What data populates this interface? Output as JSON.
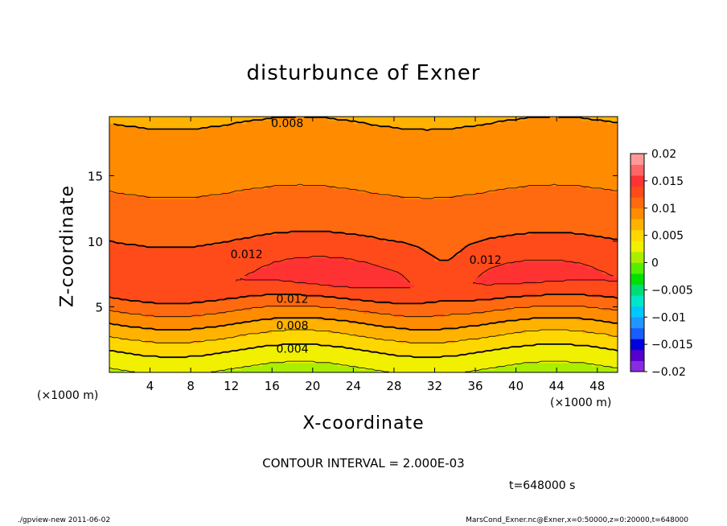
{
  "chart_data": {
    "type": "heatmap",
    "title": "disturbunce of Exner",
    "xlabel": "X-coordinate",
    "ylabel": "Z-coordinate",
    "x_unit_label": "(×1000 m)",
    "xlim": [
      0,
      50
    ],
    "ylim": [
      0,
      19.5
    ],
    "x_ticks": [
      4,
      8,
      12,
      16,
      20,
      24,
      28,
      32,
      36,
      40,
      44,
      48
    ],
    "y_ticks": [
      5,
      10,
      15
    ],
    "colorbar": {
      "ticks": [
        0.02,
        0.015,
        0.01,
        0.005,
        0,
        -0.005,
        -0.01,
        -0.015,
        -0.02
      ],
      "tick_labels": [
        "0.02",
        "0.015",
        "0.01",
        "0.005",
        "0",
        "−0.005",
        "−0.01",
        "−0.015",
        "−0.02"
      ],
      "range": [
        -0.02,
        0.02
      ]
    },
    "contour_interval_text": "CONTOUR INTERVAL = 2.000E-03",
    "contour_labels": [
      {
        "text": "0.008",
        "x": 17.5,
        "z": 19.0
      },
      {
        "text": "0.012",
        "x": 13.5,
        "z": 9.0
      },
      {
        "text": "0.012",
        "x": 18.0,
        "z": 5.6
      },
      {
        "text": "0.012",
        "x": 37.0,
        "z": 8.6
      },
      {
        "text": "0.008",
        "x": 18.0,
        "z": 3.6
      },
      {
        "text": "0.004",
        "x": 18.0,
        "z": 1.8
      }
    ],
    "field_profile": {
      "z": [
        0,
        1,
        2,
        3,
        4,
        5,
        6,
        7,
        8,
        9,
        10,
        11,
        12,
        13,
        14,
        15,
        16,
        17,
        18,
        19,
        19.5
      ],
      "value": [
        0.0015,
        0.003,
        0.0045,
        0.0065,
        0.0085,
        0.0105,
        0.0125,
        0.0138,
        0.0134,
        0.0125,
        0.012,
        0.0115,
        0.011,
        0.0104,
        0.0099,
        0.0094,
        0.0089,
        0.0085,
        0.0082,
        0.008,
        0.0079
      ]
    },
    "maxima": [
      {
        "x": 22,
        "z": 7.5,
        "value": 0.0152
      },
      {
        "x": 42,
        "z": 7.3,
        "value": 0.0148
      }
    ]
  },
  "annotations": {
    "time": "t=648000 s",
    "footer_left": "./gpview-new   2011-06-02",
    "footer_right": "MarsCond_Exner.nc@Exner,x=0:50000,z=0:20000,t=648000"
  },
  "colors": {
    "level_colors": [
      "#8a2be2",
      "#5500cc",
      "#0000dd",
      "#1a5cff",
      "#2196ff",
      "#00c8ff",
      "#00e6c8",
      "#00dc78",
      "#00e000",
      "#55ee00",
      "#aaee00",
      "#f0f000",
      "#ffd700",
      "#ffb300",
      "#ff8c00",
      "#ff6a10",
      "#ff4a1a",
      "#ff3333",
      "#ff6666",
      "#ff9999"
    ]
  }
}
